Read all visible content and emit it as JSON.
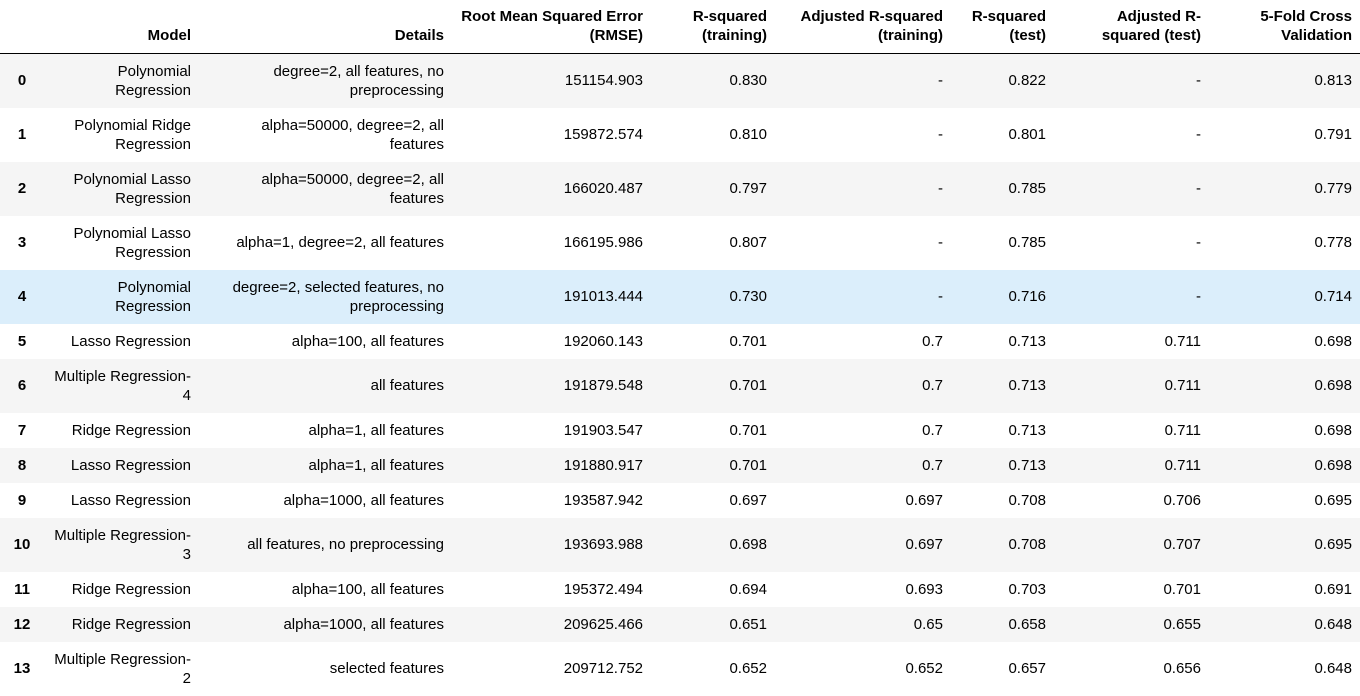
{
  "columns": [
    "",
    "Model",
    "Details",
    "Root Mean Squared Error (RMSE)",
    "R-squared (training)",
    "Adjusted R-squared (training)",
    "R-squared (test)",
    "Adjusted R-squared (test)",
    "5-Fold Cross Validation"
  ],
  "highlighted_row": 4,
  "rows": [
    {
      "idx": "0",
      "model": "Polynomial Regression",
      "details": "degree=2, all features, no preprocessing",
      "rmse": "151154.903",
      "r2_train": "0.830",
      "adj_r2_train": "-",
      "r2_test": "0.822",
      "adj_r2_test": "-",
      "cv": "0.813"
    },
    {
      "idx": "1",
      "model": "Polynomial Ridge Regression",
      "details": "alpha=50000, degree=2, all features",
      "rmse": "159872.574",
      "r2_train": "0.810",
      "adj_r2_train": "-",
      "r2_test": "0.801",
      "adj_r2_test": "-",
      "cv": "0.791"
    },
    {
      "idx": "2",
      "model": "Polynomial Lasso Regression",
      "details": "alpha=50000, degree=2, all features",
      "rmse": "166020.487",
      "r2_train": "0.797",
      "adj_r2_train": "-",
      "r2_test": "0.785",
      "adj_r2_test": "-",
      "cv": "0.779"
    },
    {
      "idx": "3",
      "model": "Polynomial Lasso Regression",
      "details": "alpha=1, degree=2, all features",
      "rmse": "166195.986",
      "r2_train": "0.807",
      "adj_r2_train": "-",
      "r2_test": "0.785",
      "adj_r2_test": "-",
      "cv": "0.778"
    },
    {
      "idx": "4",
      "model": "Polynomial Regression",
      "details": "degree=2, selected features, no preprocessing",
      "rmse": "191013.444",
      "r2_train": "0.730",
      "adj_r2_train": "-",
      "r2_test": "0.716",
      "adj_r2_test": "-",
      "cv": "0.714"
    },
    {
      "idx": "5",
      "model": "Lasso Regression",
      "details": "alpha=100, all features",
      "rmse": "192060.143",
      "r2_train": "0.701",
      "adj_r2_train": "0.7",
      "r2_test": "0.713",
      "adj_r2_test": "0.711",
      "cv": "0.698"
    },
    {
      "idx": "6",
      "model": "Multiple Regression-4",
      "details": "all features",
      "rmse": "191879.548",
      "r2_train": "0.701",
      "adj_r2_train": "0.7",
      "r2_test": "0.713",
      "adj_r2_test": "0.711",
      "cv": "0.698"
    },
    {
      "idx": "7",
      "model": "Ridge Regression",
      "details": "alpha=1, all features",
      "rmse": "191903.547",
      "r2_train": "0.701",
      "adj_r2_train": "0.7",
      "r2_test": "0.713",
      "adj_r2_test": "0.711",
      "cv": "0.698"
    },
    {
      "idx": "8",
      "model": "Lasso Regression",
      "details": "alpha=1, all features",
      "rmse": "191880.917",
      "r2_train": "0.701",
      "adj_r2_train": "0.7",
      "r2_test": "0.713",
      "adj_r2_test": "0.711",
      "cv": "0.698"
    },
    {
      "idx": "9",
      "model": "Lasso Regression",
      "details": "alpha=1000, all features",
      "rmse": "193587.942",
      "r2_train": "0.697",
      "adj_r2_train": "0.697",
      "r2_test": "0.708",
      "adj_r2_test": "0.706",
      "cv": "0.695"
    },
    {
      "idx": "10",
      "model": "Multiple Regression-3",
      "details": "all features, no preprocessing",
      "rmse": "193693.988",
      "r2_train": "0.698",
      "adj_r2_train": "0.697",
      "r2_test": "0.708",
      "adj_r2_test": "0.707",
      "cv": "0.695"
    },
    {
      "idx": "11",
      "model": "Ridge Regression",
      "details": "alpha=100, all features",
      "rmse": "195372.494",
      "r2_train": "0.694",
      "adj_r2_train": "0.693",
      "r2_test": "0.703",
      "adj_r2_test": "0.701",
      "cv": "0.691"
    },
    {
      "idx": "12",
      "model": "Ridge Regression",
      "details": "alpha=1000, all features",
      "rmse": "209625.466",
      "r2_train": "0.651",
      "adj_r2_train": "0.65",
      "r2_test": "0.658",
      "adj_r2_test": "0.655",
      "cv": "0.648"
    },
    {
      "idx": "13",
      "model": "Multiple Regression-2",
      "details": "selected features",
      "rmse": "209712.752",
      "r2_train": "0.652",
      "adj_r2_train": "0.652",
      "r2_test": "0.657",
      "adj_r2_test": "0.656",
      "cv": "0.648"
    }
  ]
}
